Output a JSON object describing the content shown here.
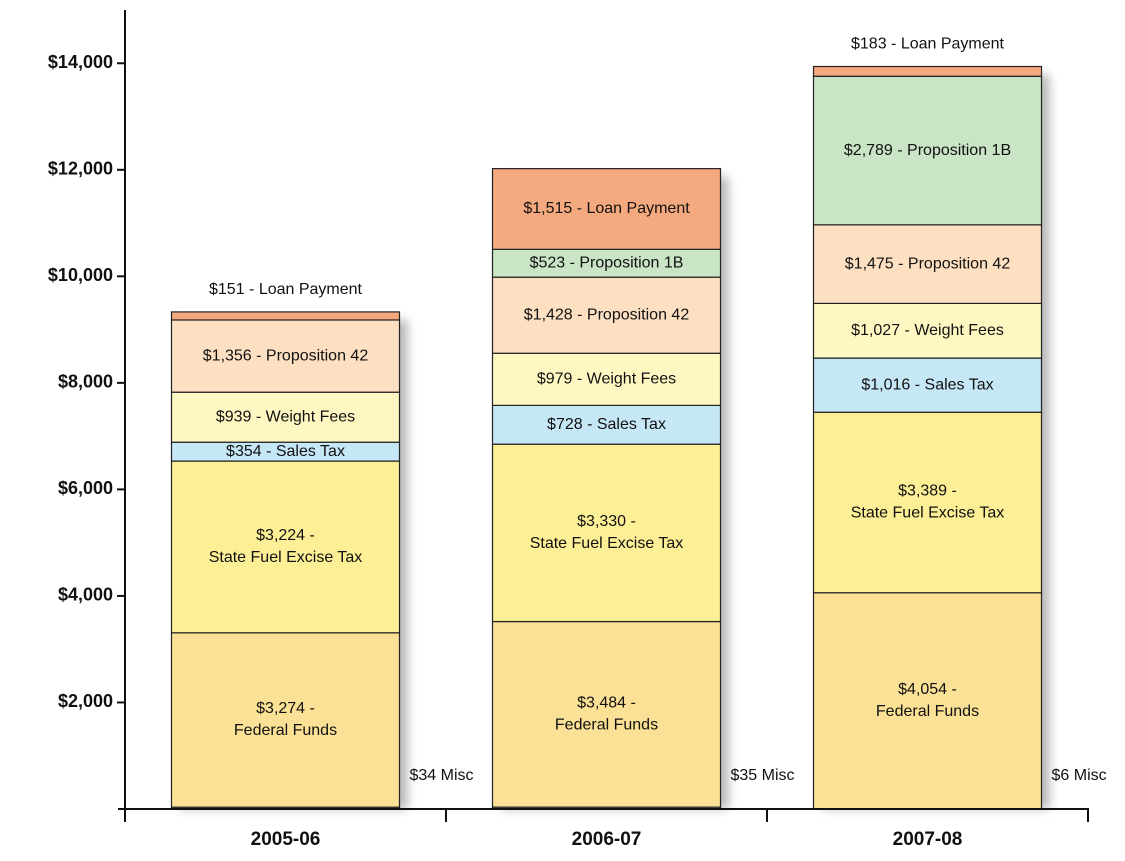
{
  "chart_data": {
    "type": "stacked-bar",
    "categories": [
      "2005-06",
      "2006-07",
      "2007-08"
    ],
    "ylim": [
      0,
      15000
    ],
    "yticks": [
      {
        "value": 2000,
        "label": "$2,000"
      },
      {
        "value": 4000,
        "label": "$4,000"
      },
      {
        "value": 6000,
        "label": "$6,000"
      },
      {
        "value": 8000,
        "label": "$8,000"
      },
      {
        "value": 10000,
        "label": "$10,000"
      },
      {
        "value": 12000,
        "label": "$12,000"
      },
      {
        "value": 14000,
        "label": "$14,000"
      }
    ],
    "series": [
      {
        "color": "#dcdcdc",
        "values": [
          34,
          35,
          6
        ],
        "value_labels": [
          "$34 Misc",
          "$35 Misc",
          "$6 Misc"
        ]
      },
      {
        "color": "#fbe195",
        "values": [
          3274,
          3484,
          4054
        ],
        "value_labels": [
          [
            "$3,274 -",
            "Federal Funds"
          ],
          [
            "$3,484 -",
            "Federal Funds"
          ],
          [
            "$4,054 -",
            "Federal Funds"
          ]
        ]
      },
      {
        "color": "#fdef95",
        "values": [
          3224,
          3330,
          3389
        ],
        "value_labels": [
          [
            "$3,224 -",
            "State Fuel Excise Tax"
          ],
          [
            "$3,330 -",
            "State Fuel Excise Tax"
          ],
          [
            "$3,389 -",
            "State Fuel Excise Tax"
          ]
        ]
      },
      {
        "color": "#c6e7f6",
        "values": [
          354,
          728,
          1016
        ],
        "value_labels": [
          "$354 - Sales Tax",
          "$728 - Sales Tax",
          "$1,016 - Sales Tax"
        ]
      },
      {
        "color": "#fff7c2",
        "values": [
          939,
          979,
          1027
        ],
        "value_labels": [
          "$939 - Weight Fees",
          "$979 - Weight Fees",
          "$1,027 - Weight Fees"
        ]
      },
      {
        "color": "#fde0c2",
        "values": [
          1356,
          1428,
          1475
        ],
        "value_labels": [
          "$1,356 - Proposition 42",
          "$1,428 - Proposition 42",
          "$1,475 - Proposition 42"
        ]
      },
      {
        "color": "#c9e5c6",
        "values": [
          null,
          523,
          2789
        ],
        "value_labels": [
          null,
          "$523 - Proposition 1B",
          "$2,789 - Proposition 1B"
        ]
      },
      {
        "color": "#f5a97f",
        "values": [
          151,
          1515,
          183
        ],
        "value_labels": [
          "$151 - Loan Payment",
          "$1,515 - Loan Payment",
          "$183 - Loan Payment"
        ]
      }
    ]
  }
}
